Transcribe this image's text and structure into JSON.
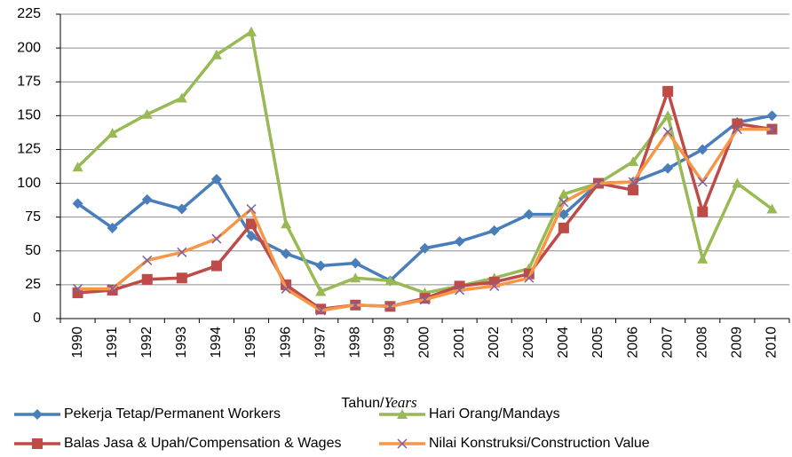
{
  "chart_data": {
    "type": "line",
    "xlabel_parts": [
      "Tahun/",
      "Years"
    ],
    "categories": [
      "1990",
      "1991",
      "1992",
      "1993",
      "1994",
      "1995",
      "1996",
      "1997",
      "1998",
      "1999",
      "2000",
      "2001",
      "2002",
      "2003",
      "2004",
      "2005",
      "2006",
      "2007",
      "2008",
      "2009",
      "2010"
    ],
    "series": [
      {
        "name": "Pekerja Tetap/Permanent Workers",
        "color": "#4a7ebb",
        "marker": "diamond",
        "marker_color": "#4a7ebb",
        "values": [
          85,
          67,
          88,
          81,
          103,
          61,
          48,
          39,
          41,
          28,
          52,
          57,
          65,
          77,
          77,
          100,
          101,
          111,
          125,
          145,
          150
        ]
      },
      {
        "name": "Hari Orang/Mandays",
        "color": "#98b954",
        "marker": "triangle",
        "marker_color": "#98b954",
        "values": [
          112,
          137,
          151,
          163,
          195,
          212,
          70,
          20,
          30,
          28,
          19,
          24,
          30,
          37,
          92,
          100,
          116,
          150,
          44,
          100,
          81
        ]
      },
      {
        "name": "Balas Jasa & Upah/Compensation & Wages",
        "color": "#be4b48",
        "marker": "square",
        "marker_color": "#be4b48",
        "values": [
          19,
          21,
          29,
          30,
          39,
          70,
          25,
          7,
          10,
          9,
          15,
          24,
          27,
          33,
          67,
          100,
          95,
          168,
          79,
          144,
          140
        ]
      },
      {
        "name": "Nilai Konstruksi/Construction Value",
        "color": "#f79646",
        "marker": "x",
        "marker_color": "#7d60a0",
        "values": [
          22,
          22,
          43,
          49,
          59,
          81,
          22,
          6,
          10,
          9,
          14,
          21,
          24,
          30,
          86,
          100,
          101,
          138,
          101,
          140,
          140
        ]
      }
    ],
    "ylim": [
      0,
      225
    ],
    "yticks": [
      0,
      25,
      50,
      75,
      100,
      125,
      150,
      175,
      200,
      225
    ],
    "grid": true
  }
}
